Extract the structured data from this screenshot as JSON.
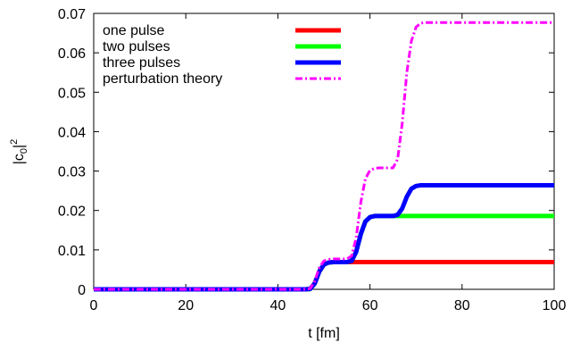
{
  "chart_data": {
    "type": "line",
    "title": "",
    "xlabel": "t [fm]",
    "ylabel": "|c0|2",
    "ylabel_parts": {
      "base": "|c",
      "sub": "0",
      "after": "|",
      "sup": "2"
    },
    "xlim": [
      0,
      100
    ],
    "ylim": [
      0,
      0.07
    ],
    "xticks": [
      0,
      20,
      40,
      60,
      80,
      100
    ],
    "xtick_labels": [
      "0",
      "20",
      "40",
      "60",
      "80",
      "100"
    ],
    "yticks": [
      0,
      0.01,
      0.02,
      0.03,
      0.04,
      0.05,
      0.06,
      0.07
    ],
    "ytick_labels": [
      "0",
      "0.01",
      "0.02",
      "0.03",
      "0.04",
      "0.05",
      "0.06",
      "0.07"
    ],
    "grid": false,
    "legend_position": "top-left",
    "series": [
      {
        "name": "one pulse",
        "color": "#ff0000",
        "style": "solid",
        "x": [
          0,
          46,
          47,
          48,
          49,
          50,
          51,
          52,
          100
        ],
        "y": [
          0,
          0,
          0.0001,
          0.0015,
          0.0045,
          0.0063,
          0.0068,
          0.0069,
          0.0069
        ]
      },
      {
        "name": "two pulses",
        "color": "#00ff00",
        "style": "solid",
        "x": [
          0,
          46,
          47,
          48,
          49,
          50,
          51,
          52,
          55,
          56,
          57,
          58,
          59,
          60,
          61,
          62,
          100
        ],
        "y": [
          0,
          0,
          0.0001,
          0.0015,
          0.0045,
          0.0063,
          0.0068,
          0.0069,
          0.0069,
          0.0072,
          0.0095,
          0.014,
          0.0172,
          0.0183,
          0.0186,
          0.0186,
          0.0186
        ]
      },
      {
        "name": "three pulses",
        "color": "#0000ff",
        "style": "solid",
        "x": [
          0,
          46,
          47,
          48,
          49,
          50,
          51,
          52,
          55,
          56,
          57,
          58,
          59,
          60,
          61,
          62,
          65,
          66,
          67,
          68,
          69,
          70,
          71,
          72,
          100
        ],
        "y": [
          0,
          0,
          0.0001,
          0.0015,
          0.0045,
          0.0063,
          0.0068,
          0.0069,
          0.0069,
          0.0072,
          0.0095,
          0.014,
          0.0172,
          0.0183,
          0.0186,
          0.0186,
          0.0186,
          0.0189,
          0.0205,
          0.0235,
          0.0255,
          0.0262,
          0.0264,
          0.0264,
          0.0264
        ]
      },
      {
        "name": "perturbation theory",
        "color": "#ff00ff",
        "style": "dashdot",
        "x": [
          0,
          46,
          47,
          48,
          49,
          50,
          51,
          52,
          55,
          56,
          57,
          58,
          59,
          60,
          61,
          62,
          65,
          66,
          67,
          68,
          69,
          70,
          71,
          72,
          100
        ],
        "y": [
          0,
          0,
          0.0002,
          0.002,
          0.0055,
          0.0072,
          0.0076,
          0.0077,
          0.0077,
          0.0085,
          0.013,
          0.022,
          0.028,
          0.0302,
          0.0307,
          0.0308,
          0.0308,
          0.033,
          0.042,
          0.055,
          0.063,
          0.0665,
          0.0675,
          0.0677,
          0.0677
        ]
      }
    ]
  }
}
